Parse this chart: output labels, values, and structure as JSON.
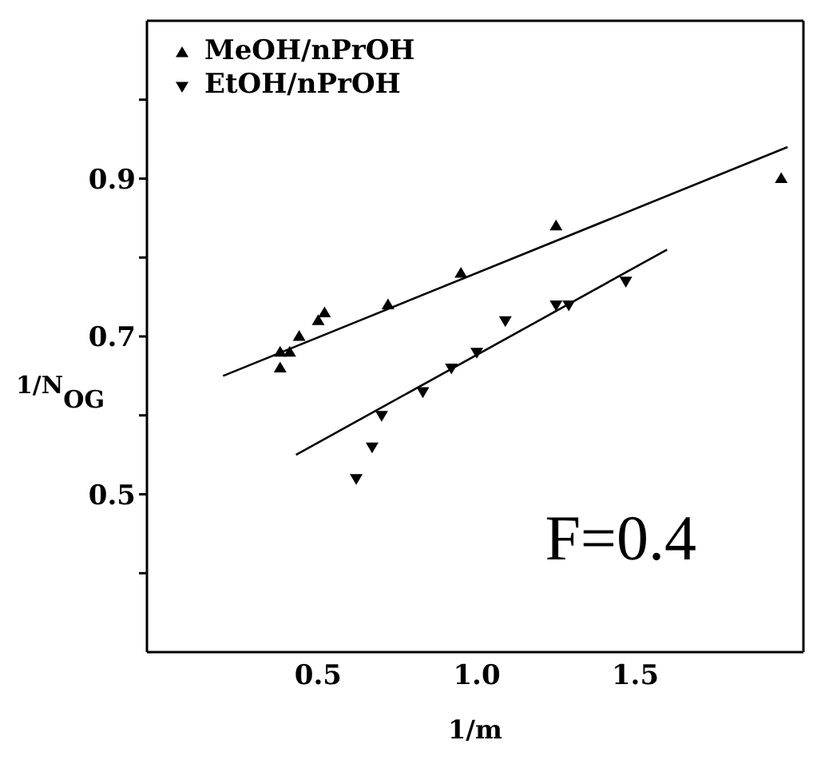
{
  "chart_data": {
    "type": "scatter",
    "xlabel": "1/m",
    "ylabel": "1/N$_{OG}$",
    "annotations": [
      "F=0.4"
    ],
    "xlim": [
      -0.04,
      2.03
    ],
    "ylim": [
      0.3,
      1.1
    ],
    "xticks": [
      0.5,
      {
        "value": 1.0,
        "label": "1.0"
      },
      1.5
    ],
    "yticks": [
      {
        "value": 0.4,
        "label": null
      },
      0.5,
      {
        "value": 0.6,
        "label": null
      },
      0.7,
      {
        "value": 0.8,
        "label": null
      },
      0.9,
      {
        "value": 1.0,
        "label": null
      }
    ],
    "legend": "top left",
    "series": [
      {
        "name": "MeOH/nPrOH",
        "color": "#000000",
        "marker": "triangle",
        "x": [
          0.38,
          0.38,
          0.41,
          0.44,
          0.5,
          0.52,
          0.72,
          0.95,
          1.25,
          1.96
        ],
        "values": [
          0.66,
          0.68,
          0.68,
          0.7,
          0.72,
          0.73,
          0.74,
          0.78,
          0.84,
          0.9
        ]
      },
      {
        "name": "EtOH/nPrOH",
        "color": "#000000",
        "marker": "triangle-down",
        "x": [
          0.62,
          0.67,
          0.7,
          0.83,
          0.92,
          1.0,
          1.09,
          1.25,
          1.29,
          1.47
        ],
        "values": [
          0.52,
          0.56,
          0.6,
          0.63,
          0.66,
          0.68,
          0.72,
          0.74,
          0.74,
          0.77
        ]
      },
      {
        "type": "line",
        "color": "#000000",
        "marker": "none",
        "x": [
          0.2,
          1.98
        ],
        "values": [
          0.65,
          0.94
        ]
      },
      {
        "type": "line",
        "color": "#000000",
        "marker": "none",
        "x": [
          0.43,
          1.6
        ],
        "values": [
          0.55,
          0.81
        ]
      }
    ]
  }
}
